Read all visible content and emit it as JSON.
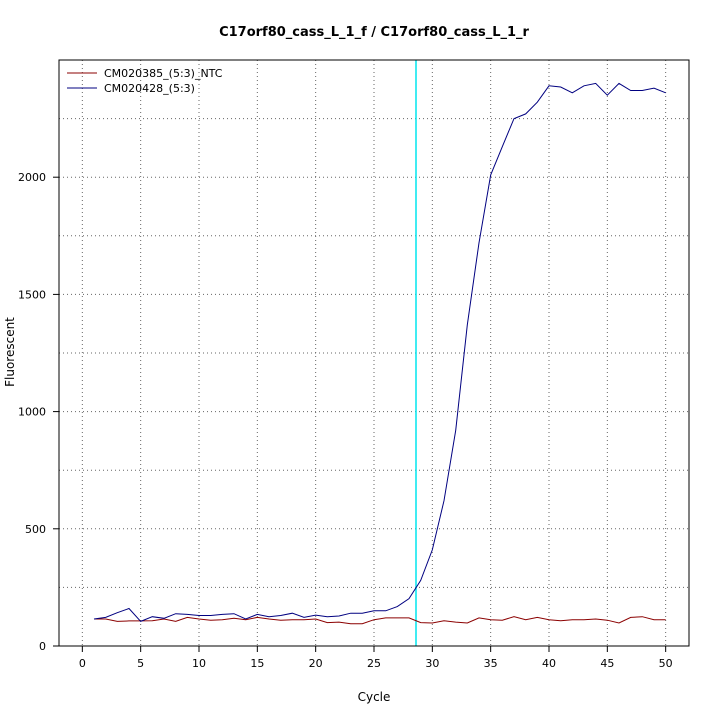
{
  "chart_data": {
    "type": "line",
    "title": "C17orf80_cass_L_1_f / C17orf80_cass_L_1_r",
    "xlabel": "Cycle",
    "ylabel": "Fluorescent",
    "xlim": [
      -2,
      52
    ],
    "ylim": [
      0,
      2500
    ],
    "x_ticks": [
      0,
      5,
      10,
      15,
      20,
      25,
      30,
      35,
      40,
      45,
      50
    ],
    "y_ticks": [
      0,
      500,
      1000,
      1500,
      2000
    ],
    "grid": true,
    "legend_position": "top-left",
    "threshold_cycle": 28.6,
    "threshold_color": "#00e5ee",
    "series": [
      {
        "name": "CM020385_(5:3)_NTC",
        "color": "#8b0000",
        "x": [
          1,
          2,
          3,
          4,
          5,
          6,
          7,
          8,
          9,
          10,
          11,
          12,
          13,
          14,
          15,
          16,
          17,
          18,
          19,
          20,
          21,
          22,
          23,
          24,
          25,
          26,
          27,
          28,
          29,
          30,
          31,
          32,
          33,
          34,
          35,
          36,
          37,
          38,
          39,
          40,
          41,
          42,
          43,
          44,
          45,
          46,
          47,
          48,
          49,
          50
        ],
        "values": [
          115,
          115,
          105,
          107,
          107,
          108,
          115,
          105,
          122,
          115,
          110,
          112,
          118,
          112,
          122,
          115,
          110,
          112,
          112,
          115,
          100,
          102,
          95,
          95,
          112,
          120,
          120,
          120,
          100,
          98,
          108,
          102,
          98,
          120,
          112,
          110,
          125,
          112,
          122,
          112,
          108,
          112,
          112,
          115,
          110,
          98,
          122,
          125,
          112,
          112
        ]
      },
      {
        "name": "CM020428_(5:3)",
        "color": "#000080",
        "x": [
          1,
          2,
          3,
          4,
          5,
          6,
          7,
          8,
          9,
          10,
          11,
          12,
          13,
          14,
          15,
          16,
          17,
          18,
          19,
          20,
          21,
          22,
          23,
          24,
          25,
          26,
          27,
          28,
          29,
          30,
          31,
          32,
          33,
          34,
          35,
          36,
          37,
          38,
          39,
          40,
          41,
          42,
          43,
          44,
          45,
          46,
          47,
          48,
          49,
          50
        ],
        "values": [
          115,
          122,
          142,
          160,
          105,
          125,
          118,
          138,
          135,
          130,
          130,
          135,
          138,
          115,
          135,
          125,
          130,
          140,
          122,
          132,
          125,
          128,
          140,
          140,
          150,
          150,
          168,
          202,
          280,
          410,
          620,
          920,
          1370,
          1720,
          2010,
          2130,
          2250,
          2270,
          2320,
          2390,
          2385,
          2360,
          2390,
          2400,
          2350,
          2400,
          2370,
          2370,
          2380,
          2360
        ]
      }
    ]
  }
}
